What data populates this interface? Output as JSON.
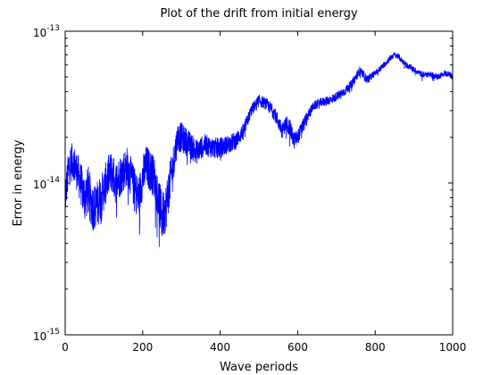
{
  "chart_data": {
    "type": "line",
    "title": "Plot of the drift from initial energy",
    "xlabel": "Wave periods",
    "ylabel": "Error in energy",
    "xlim": [
      0,
      1000
    ],
    "ylim": [
      1e-15,
      1e-13
    ],
    "yscale": "log",
    "grid": false,
    "xticks": [
      "0",
      "200",
      "400",
      "600",
      "800",
      "1000"
    ],
    "yticks": [
      {
        "base": "10",
        "exp": "-15"
      },
      {
        "base": "10",
        "exp": "-14"
      },
      {
        "base": "10",
        "exp": "-13"
      }
    ],
    "series": [
      {
        "color": "#0000ff",
        "x": [
          0,
          10,
          20,
          30,
          40,
          50,
          60,
          70,
          80,
          90,
          100,
          110,
          120,
          130,
          140,
          150,
          160,
          170,
          180,
          190,
          200,
          210,
          220,
          230,
          240,
          250,
          260,
          270,
          280,
          290,
          300,
          320,
          340,
          360,
          380,
          400,
          420,
          440,
          460,
          480,
          500,
          520,
          540,
          560,
          570,
          580,
          590,
          600,
          620,
          640,
          660,
          680,
          700,
          720,
          740,
          760,
          780,
          800,
          820,
          840,
          850,
          860,
          880,
          900,
          920,
          940,
          960,
          980,
          1000
        ],
        "y": [
          8e-15,
          1.3e-14,
          1.4e-14,
          1.2e-14,
          1e-14,
          8e-15,
          9e-15,
          7e-15,
          7e-15,
          8e-15,
          9e-15,
          1.1e-14,
          1.2e-14,
          1e-14,
          1.1e-14,
          1.2e-14,
          1.3e-14,
          1.1e-14,
          9e-15,
          8e-15,
          1.1e-14,
          1.3e-14,
          1.2e-14,
          1.1e-14,
          8e-15,
          6e-15,
          7e-15,
          1e-14,
          1.4e-14,
          2e-14,
          2e-14,
          1.8e-14,
          1.6e-14,
          1.8e-14,
          1.7e-14,
          1.7e-14,
          1.8e-14,
          1.9e-14,
          2.2e-14,
          3e-14,
          3.5e-14,
          3.3e-14,
          2.9e-14,
          2.2e-14,
          2.5e-14,
          2.3e-14,
          1.9e-14,
          2e-14,
          2.6e-14,
          3.2e-14,
          3.4e-14,
          3.5e-14,
          3.7e-14,
          4e-14,
          4.5e-14,
          5.5e-14,
          4.8e-14,
          5.3e-14,
          5.9e-14,
          6.7e-14,
          7e-14,
          6.8e-14,
          6e-14,
          5.6e-14,
          5.2e-14,
          5.2e-14,
          5e-14,
          5.3e-14,
          5.1e-14
        ],
        "noise_log_amplitude": [
          0.12,
          0.14,
          0.12,
          0.13,
          0.14,
          0.16,
          0.16,
          0.16,
          0.16,
          0.15,
          0.14,
          0.14,
          0.14,
          0.14,
          0.14,
          0.14,
          0.13,
          0.13,
          0.14,
          0.14,
          0.14,
          0.14,
          0.14,
          0.14,
          0.15,
          0.17,
          0.16,
          0.14,
          0.12,
          0.1,
          0.1,
          0.09,
          0.08,
          0.07,
          0.07,
          0.07,
          0.06,
          0.06,
          0.05,
          0.04,
          0.04,
          0.04,
          0.05,
          0.05,
          0.05,
          0.06,
          0.06,
          0.05,
          0.04,
          0.03,
          0.03,
          0.03,
          0.03,
          0.03,
          0.03,
          0.03,
          0.03,
          0.02,
          0.02,
          0.02,
          0.02,
          0.02,
          0.02,
          0.02,
          0.02,
          0.02,
          0.02,
          0.02,
          0.02
        ]
      }
    ]
  }
}
